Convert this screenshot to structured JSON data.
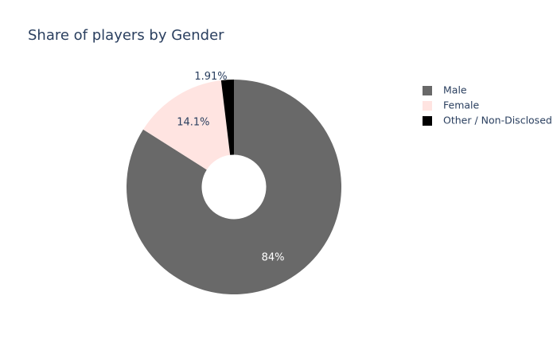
{
  "chart_data": {
    "type": "pie",
    "title": "Share of players by Gender",
    "hole": 0.3,
    "direction": "clockwise",
    "legend_position": "top-right",
    "slices": [
      {
        "label": "Male",
        "value": 84.0,
        "text": "84%",
        "color": "#696969",
        "text_color": "#ffffff",
        "text_position": "inside"
      },
      {
        "label": "Female",
        "value": 14.1,
        "text": "14.1%",
        "color": "#ffe4e1",
        "text_color": "#2a3f5f",
        "text_position": "inside"
      },
      {
        "label": "Other / Non-Disclosed",
        "value": 1.91,
        "text": "1.91%",
        "color": "#000000",
        "text_color": "#2a3f5f",
        "text_position": "outside"
      }
    ]
  }
}
